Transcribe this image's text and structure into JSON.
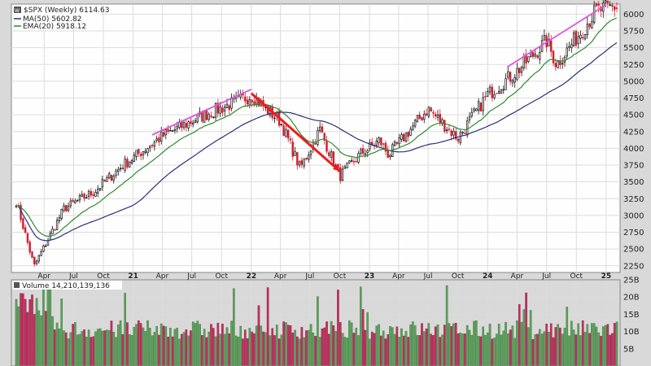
{
  "chart_data": [
    {
      "type": "candlestick",
      "symbol": "$SPX",
      "period_label": "(Weekly)",
      "last_value": "6114.63",
      "legend": {
        "title": "$SPX (Weekly) 6114.63",
        "ma50": "MA(50) 5602.82",
        "ema20": "EMA(20) 5918.12"
      },
      "colors": {
        "up": "#111111",
        "down": "#d21f2f",
        "ma50": "#2e2f7a",
        "ema20": "#2f8a2f",
        "trendline": "#e055d8",
        "arrow": "#ee1c1c"
      },
      "x_ticks": [
        "Apr",
        "Jul",
        "Oct",
        "21",
        "Apr",
        "Jul",
        "Oct",
        "22",
        "Apr",
        "Jul",
        "Oct",
        "23",
        "Apr",
        "Jul",
        "Oct",
        "24",
        "Apr",
        "Jul",
        "Oct",
        "25"
      ],
      "y_ticks": [
        "6000",
        "5750",
        "5500",
        "5250",
        "5000",
        "4750",
        "4500",
        "4250",
        "4000",
        "3750",
        "3500",
        "3250",
        "3000",
        "2750",
        "2500",
        "2250"
      ],
      "ylim": [
        2150,
        6150
      ],
      "key_points": [
        {
          "x": "2020-01",
          "y": 3300
        },
        {
          "x": "2020-03",
          "y": 2240
        },
        {
          "x": "2020-06",
          "y": 3100
        },
        {
          "x": "2020-09",
          "y": 3350
        },
        {
          "x": "2020-12",
          "y": 3750
        },
        {
          "x": "2021-04",
          "y": 4180
        },
        {
          "x": "2021-08",
          "y": 4480
        },
        {
          "x": "2022-01",
          "y": 4790
        },
        {
          "x": "2022-04",
          "y": 4400
        },
        {
          "x": "2022-06",
          "y": 3700
        },
        {
          "x": "2022-08",
          "y": 4280
        },
        {
          "x": "2022-10",
          "y": 3580
        },
        {
          "x": "2022-12",
          "y": 3900
        },
        {
          "x": "2023-02",
          "y": 4120
        },
        {
          "x": "2023-03",
          "y": 3900
        },
        {
          "x": "2023-07",
          "y": 4590
        },
        {
          "x": "2023-10",
          "y": 4150
        },
        {
          "x": "2024-01",
          "y": 4800
        },
        {
          "x": "2024-04",
          "y": 5150
        },
        {
          "x": "2024-07",
          "y": 5600
        },
        {
          "x": "2024-08",
          "y": 5250
        },
        {
          "x": "2024-12",
          "y": 6050
        },
        {
          "x": "2025-02",
          "y": 6110
        }
      ]
    },
    {
      "type": "bar",
      "legend_title": "Volume 14,210,139,136",
      "y_ticks": [
        "25B",
        "20B",
        "15B",
        "10B",
        "5B"
      ],
      "ylim": [
        0,
        25
      ],
      "unit": "B"
    }
  ]
}
